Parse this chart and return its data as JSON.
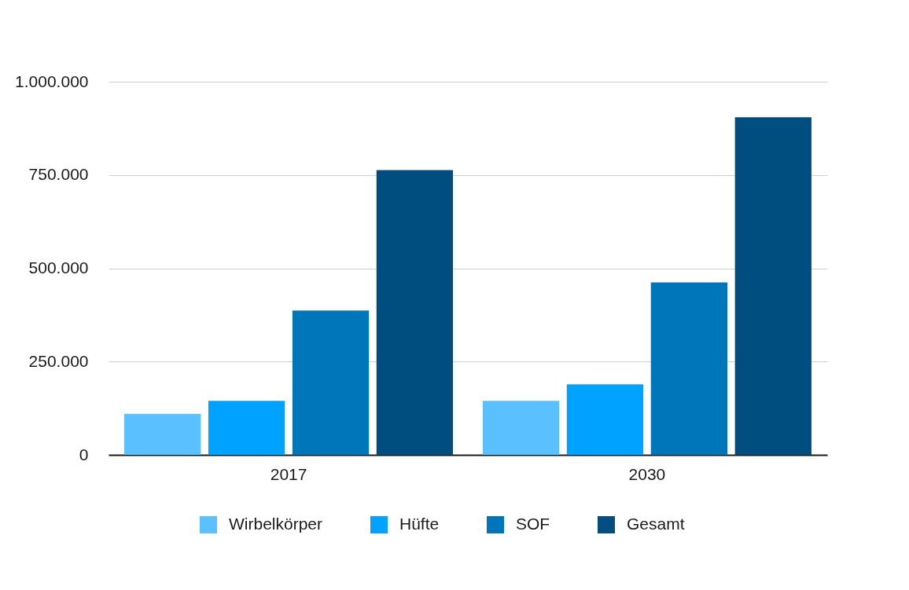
{
  "chart_data": {
    "type": "bar",
    "categories": [
      "2017",
      "2030"
    ],
    "series": [
      {
        "name": "Wirbelkörper",
        "color": "#5ac0ff",
        "values": [
          110000,
          145000
        ]
      },
      {
        "name": "Hüfte",
        "color": "#00a2ff",
        "values": [
          145000,
          189000
        ]
      },
      {
        "name": "SOF",
        "color": "#0076ba",
        "values": [
          387000,
          462000
        ]
      },
      {
        "name": "Gesamt",
        "color": "#004d80",
        "values": [
          763000,
          905000
        ]
      }
    ],
    "ylim": [
      0,
      1000000
    ],
    "yticks": [
      0,
      {
        "value": 250000,
        "label": "250.000"
      },
      {
        "value": 500000,
        "label": "500.000"
      },
      {
        "value": 750000,
        "label": "750.000"
      },
      {
        "value": 1000000,
        "label": "1.000.000"
      }
    ],
    "grid": "y",
    "legend": "bottom"
  }
}
